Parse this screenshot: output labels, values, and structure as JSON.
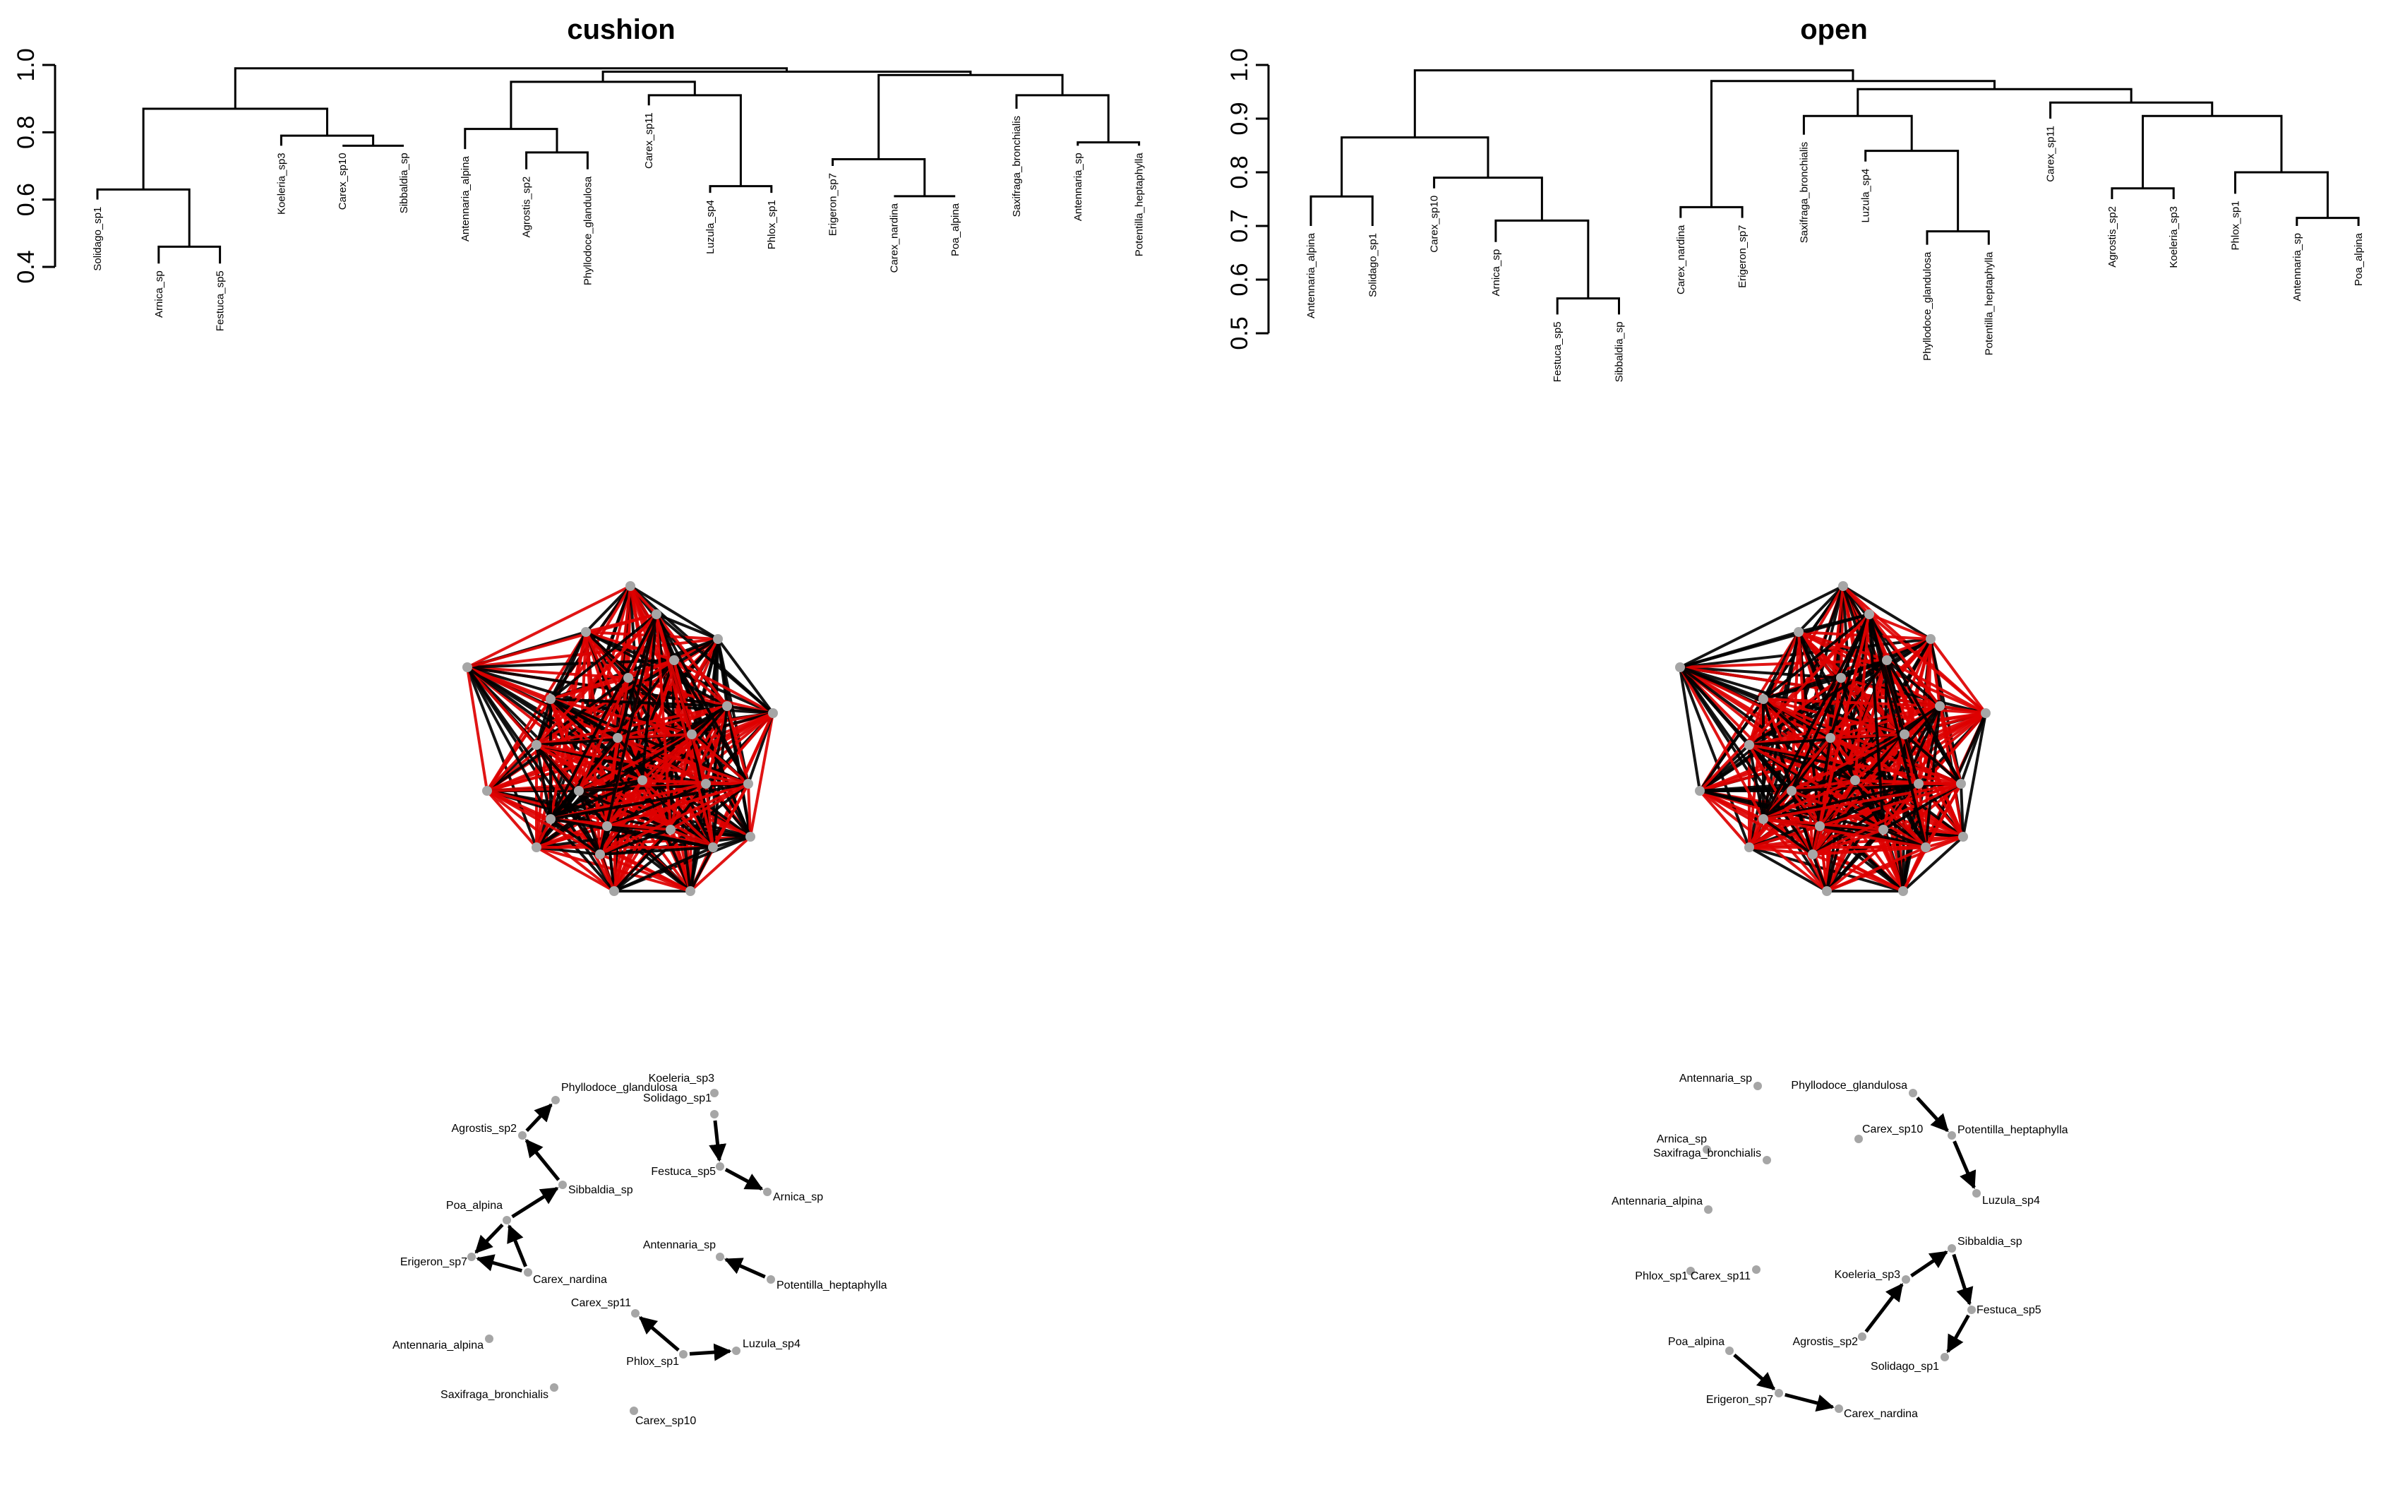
{
  "chart_data": [
    {
      "type": "dendrogram",
      "panel": "cushion",
      "title": "cushion",
      "ylim": [
        0.4,
        1.0
      ],
      "yticks": [
        "0.4",
        "0.6",
        "0.8",
        "1.0"
      ],
      "leaves": [
        "Solidago_sp1",
        "Arnica_sp",
        "Festuca_sp5",
        "Koeleria_sp3",
        "Carex_sp10",
        "Sibbaldia_sp",
        "Antennaria_alpina",
        "Agrostis_sp2",
        "Phyllodoce_glandulosa",
        "Carex_sp11",
        "Luzula_sp4",
        "Phlox_sp1",
        "Erigeron_sp7",
        "Carex_nardina",
        "Poa_alpina",
        "Saxifraga_bronchialis",
        "Antennaria_sp",
        "Potentilla_heptaphylla"
      ],
      "merges": [
        [
          [
            1,
            0.41
          ],
          [
            2,
            0.41
          ],
          0.46
        ],
        [
          [
            0,
            0.6
          ],
          [
            1.5,
            0.46
          ],
          0.63
        ],
        [
          [
            4,
            0.76
          ],
          [
            5,
            0.76
          ],
          0.76
        ],
        [
          [
            3,
            0.76
          ],
          [
            4.5,
            0.76
          ],
          0.79
        ],
        [
          [
            0.75,
            0.63
          ],
          [
            3.75,
            0.79
          ],
          0.87
        ],
        [
          [
            7,
            0.69
          ],
          [
            8,
            0.69
          ],
          0.74
        ],
        [
          [
            6,
            0.75
          ],
          [
            7.5,
            0.74
          ],
          0.81
        ],
        [
          [
            10,
            0.62
          ],
          [
            11,
            0.62
          ],
          0.64
        ],
        [
          [
            9,
            0.88
          ],
          [
            10.5,
            0.64
          ],
          0.91
        ],
        [
          [
            6.75,
            0.81
          ],
          [
            9.75,
            0.91
          ],
          0.95
        ],
        [
          [
            13,
            0.61
          ],
          [
            14,
            0.61
          ],
          0.61
        ],
        [
          [
            12,
            0.7
          ],
          [
            13.5,
            0.61
          ],
          0.72
        ],
        [
          [
            16,
            0.76
          ],
          [
            17,
            0.76
          ],
          0.77
        ],
        [
          [
            15,
            0.87
          ],
          [
            16.5,
            0.77
          ],
          0.91
        ],
        [
          [
            12.75,
            0.72
          ],
          [
            15.75,
            0.91
          ],
          0.97
        ],
        [
          [
            8.25,
            0.95
          ],
          [
            14.25,
            0.97
          ],
          0.98
        ],
        [
          [
            2.25,
            0.87
          ],
          [
            11.25,
            0.98
          ],
          0.99
        ]
      ]
    },
    {
      "type": "dendrogram",
      "panel": "open",
      "title": "open",
      "ylim": [
        0.5,
        1.0
      ],
      "yticks": [
        "0.5",
        "0.6",
        "0.7",
        "0.8",
        "0.9",
        "1.0"
      ],
      "leaves": [
        "Antennaria_alpina",
        "Solidago_sp1",
        "Carex_sp10",
        "Arnica_sp",
        "Festuca_sp5",
        "Sibbaldia_sp",
        "Carex_nardina",
        "Erigeron_sp7",
        "Saxifraga_bronchialis",
        "Luzula_sp4",
        "Phyllodoce_glandulosa",
        "Potentilla_heptaphylla",
        "Carex_sp11",
        "Agrostis_sp2",
        "Koeleria_sp3",
        "Phlox_sp1",
        "Antennaria_sp",
        "Poa_alpina"
      ],
      "merges": [
        [
          [
            0,
            0.7
          ],
          [
            1,
            0.7
          ],
          0.755
        ],
        [
          [
            4,
            0.535
          ],
          [
            5,
            0.535
          ],
          0.565
        ],
        [
          [
            3,
            0.67
          ],
          [
            4.5,
            0.565
          ],
          0.71
        ],
        [
          [
            2,
            0.77
          ],
          [
            3.75,
            0.71
          ],
          0.79
        ],
        [
          [
            0.5,
            0.755
          ],
          [
            2.875,
            0.79
          ],
          0.865
        ],
        [
          [
            6,
            0.715
          ],
          [
            7,
            0.715
          ],
          0.735
        ],
        [
          [
            10,
            0.665
          ],
          [
            11,
            0.665
          ],
          0.69
        ],
        [
          [
            9,
            0.82
          ],
          [
            10.5,
            0.69
          ],
          0.84
        ],
        [
          [
            8,
            0.87
          ],
          [
            9.75,
            0.84
          ],
          0.905
        ],
        [
          [
            13,
            0.75
          ],
          [
            14,
            0.75
          ],
          0.77
        ],
        [
          [
            16,
            0.7
          ],
          [
            17,
            0.7
          ],
          0.715
        ],
        [
          [
            15,
            0.76
          ],
          [
            16.5,
            0.715
          ],
          0.8
        ],
        [
          [
            13.5,
            0.77
          ],
          [
            15.75,
            0.8
          ],
          0.905
        ],
        [
          [
            12,
            0.9
          ],
          [
            14.625,
            0.905
          ],
          0.93
        ],
        [
          [
            8.875,
            0.905
          ],
          [
            13.3125,
            0.93
          ],
          0.955
        ],
        [
          [
            6.5,
            0.735
          ],
          [
            11.09375,
            0.955
          ],
          0.97
        ],
        [
          [
            1.6875,
            0.865
          ],
          [
            8.796875,
            0.97
          ],
          0.99
        ]
      ]
    },
    {
      "type": "network",
      "panel": "cushion-full",
      "edge_colors": [
        "#000000",
        "#dd0000"
      ],
      "node_color": "#a6a6a6"
    },
    {
      "type": "network",
      "panel": "open-full",
      "edge_colors": [
        "#000000",
        "#dd0000"
      ],
      "node_color": "#a6a6a6"
    },
    {
      "type": "network",
      "panel": "cushion",
      "node_color": "#a6a6a6",
      "edge_color": "#000000",
      "nodes": [
        "Phyllodoce_glandulosa",
        "Koeleria_sp3",
        "Solidago_sp1",
        "Agrostis_sp2",
        "Sibbaldia_sp",
        "Festuca_sp5",
        "Arnica_sp",
        "Poa_alpina",
        "Erigeron_sp7",
        "Carex_nardina",
        "Antennaria_sp",
        "Potentilla_heptaphylla",
        "Carex_sp11",
        "Luzula_sp4",
        "Phlox_sp1",
        "Antennaria_alpina",
        "Saxifraga_bronchialis",
        "Carex_sp10"
      ],
      "edges": [
        [
          "Agrostis_sp2",
          "Phyllodoce_glandulosa"
        ],
        [
          "Sibbaldia_sp",
          "Agrostis_sp2"
        ],
        [
          "Poa_alpina",
          "Sibbaldia_sp"
        ],
        [
          "Carex_nardina",
          "Poa_alpina"
        ],
        [
          "Poa_alpina",
          "Erigeron_sp7"
        ],
        [
          "Carex_nardina",
          "Erigeron_sp7"
        ],
        [
          "Solidago_sp1",
          "Festuca_sp5"
        ],
        [
          "Festuca_sp5",
          "Arnica_sp"
        ],
        [
          "Potentilla_heptaphylla",
          "Antennaria_sp"
        ],
        [
          "Phlox_sp1",
          "Carex_sp11"
        ],
        [
          "Phlox_sp1",
          "Luzula_sp4"
        ]
      ]
    },
    {
      "type": "network",
      "panel": "open",
      "node_color": "#a6a6a6",
      "edge_color": "#000000",
      "nodes": [
        "Antennaria_sp",
        "Phyllodoce_glandulosa",
        "Arnica_sp",
        "Saxifraga_bronchialis",
        "Carex_sp10",
        "Potentilla_heptaphylla",
        "Antennaria_alpina",
        "Luzula_sp4",
        "Phlox_sp1",
        "Carex_sp11",
        "Sibbaldia_sp",
        "Koeleria_sp3",
        "Festuca_sp5",
        "Agrostis_sp2",
        "Solidago_sp1",
        "Poa_alpina",
        "Erigeron_sp7",
        "Carex_nardina"
      ],
      "edges": [
        [
          "Phyllodoce_glandulosa",
          "Potentilla_heptaphylla"
        ],
        [
          "Potentilla_heptaphylla",
          "Luzula_sp4"
        ],
        [
          "Koeleria_sp3",
          "Sibbaldia_sp"
        ],
        [
          "Sibbaldia_sp",
          "Festuca_sp5"
        ],
        [
          "Agrostis_sp2",
          "Koeleria_sp3"
        ],
        [
          "Festuca_sp5",
          "Solidago_sp1"
        ],
        [
          "Poa_alpina",
          "Erigeron_sp7"
        ],
        [
          "Erigeron_sp7",
          "Carex_nardina"
        ]
      ]
    }
  ]
}
